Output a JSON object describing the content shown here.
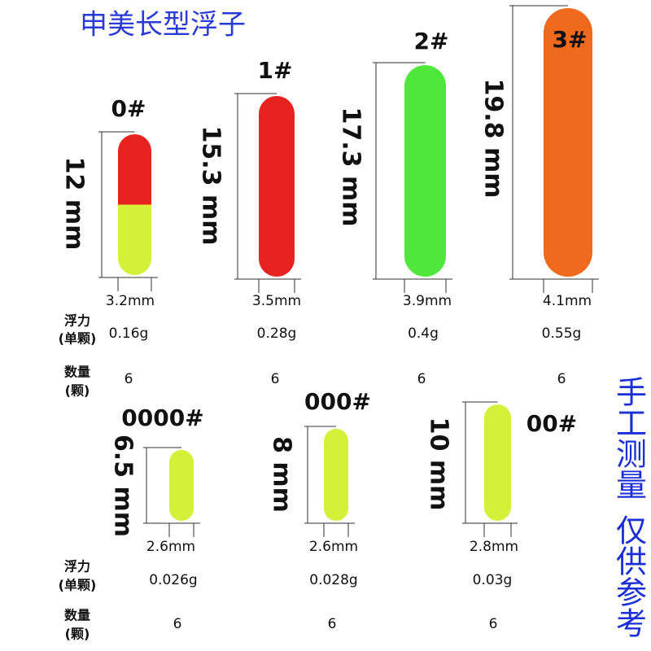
{
  "title": "申美长型浮子",
  "labels": {
    "buoyancy": "浮力",
    "per_piece": "(单颗)",
    "quantity": "数量",
    "pieces": "(颗)"
  },
  "floats": [
    {
      "name": "0#",
      "length": "12 mm",
      "width": "3.2mm",
      "buoyancy": "0.16g",
      "quantity": 6
    },
    {
      "name": "1#",
      "length": "15.3 mm",
      "width": "3.5mm",
      "buoyancy": "0.28g",
      "quantity": 6
    },
    {
      "name": "2#",
      "length": "17.3 mm",
      "width": "3.9mm",
      "buoyancy": "0.4g",
      "quantity": 6
    },
    {
      "name": "3#",
      "length": "19.8 mm",
      "width": "4.1mm",
      "buoyancy": "0.55g",
      "quantity": 6
    },
    {
      "name": "0000#",
      "length": "6.5 mm",
      "width": "2.6mm",
      "buoyancy": "0.026g",
      "quantity": 6
    },
    {
      "name": "000#",
      "length": "8 mm",
      "width": "2.6mm",
      "buoyancy": "0.028g",
      "quantity": 6
    },
    {
      "name": "00#",
      "length": "10 mm",
      "width": "2.8mm",
      "buoyancy": "0.03g",
      "quantity": 6
    }
  ],
  "note": [
    "手工测量",
    "仅供参考"
  ]
}
